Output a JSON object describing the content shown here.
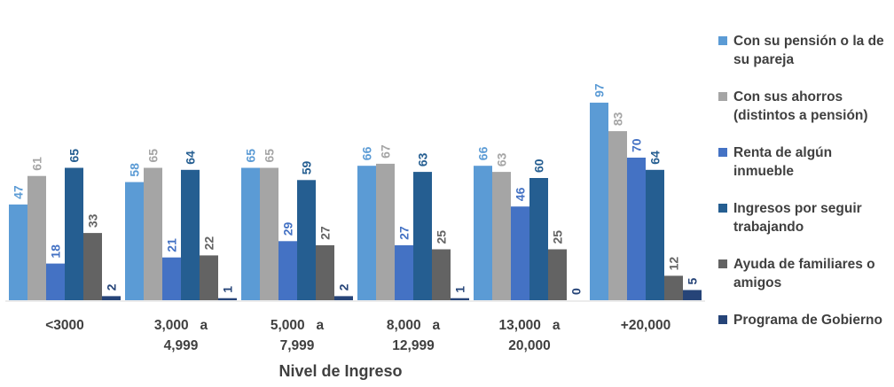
{
  "chart_data": {
    "type": "bar",
    "xlabel": "Nivel de Ingreso",
    "categories": [
      [
        "<3000"
      ],
      [
        "3,000   a",
        "4,999"
      ],
      [
        "5,000   a",
        "7,999"
      ],
      [
        "8,000   a",
        "12,999"
      ],
      [
        "13,000   a",
        "20,000"
      ],
      [
        "+20,000"
      ]
    ],
    "series": [
      {
        "name": "Con su pensión o la de su pareja",
        "color": "#5b9bd5",
        "label_color": "#5b9bd5",
        "values": [
          47,
          58,
          65,
          66,
          66,
          97
        ]
      },
      {
        "name": "Con sus ahorros (distintos a pensión)",
        "color": "#a5a5a5",
        "label_color": "#a5a5a5",
        "values": [
          61,
          65,
          65,
          67,
          63,
          83
        ]
      },
      {
        "name": "Renta de algún inmueble",
        "color": "#4472c4",
        "label_color": "#4472c4",
        "values": [
          18,
          21,
          29,
          27,
          46,
          70
        ]
      },
      {
        "name": "Ingresos por seguir trabajando",
        "color": "#255e91",
        "label_color": "#255e91",
        "values": [
          65,
          64,
          59,
          63,
          60,
          64
        ]
      },
      {
        "name": "Ayuda de familiares o amigos",
        "color": "#636363",
        "label_color": "#636363",
        "values": [
          33,
          22,
          27,
          25,
          25,
          12
        ]
      },
      {
        "name": "Programa de Gobierno",
        "color": "#264478",
        "label_color": "#264478",
        "values": [
          2,
          1,
          2,
          1,
          0,
          5
        ]
      }
    ],
    "legend_position": "right",
    "grid": false
  }
}
